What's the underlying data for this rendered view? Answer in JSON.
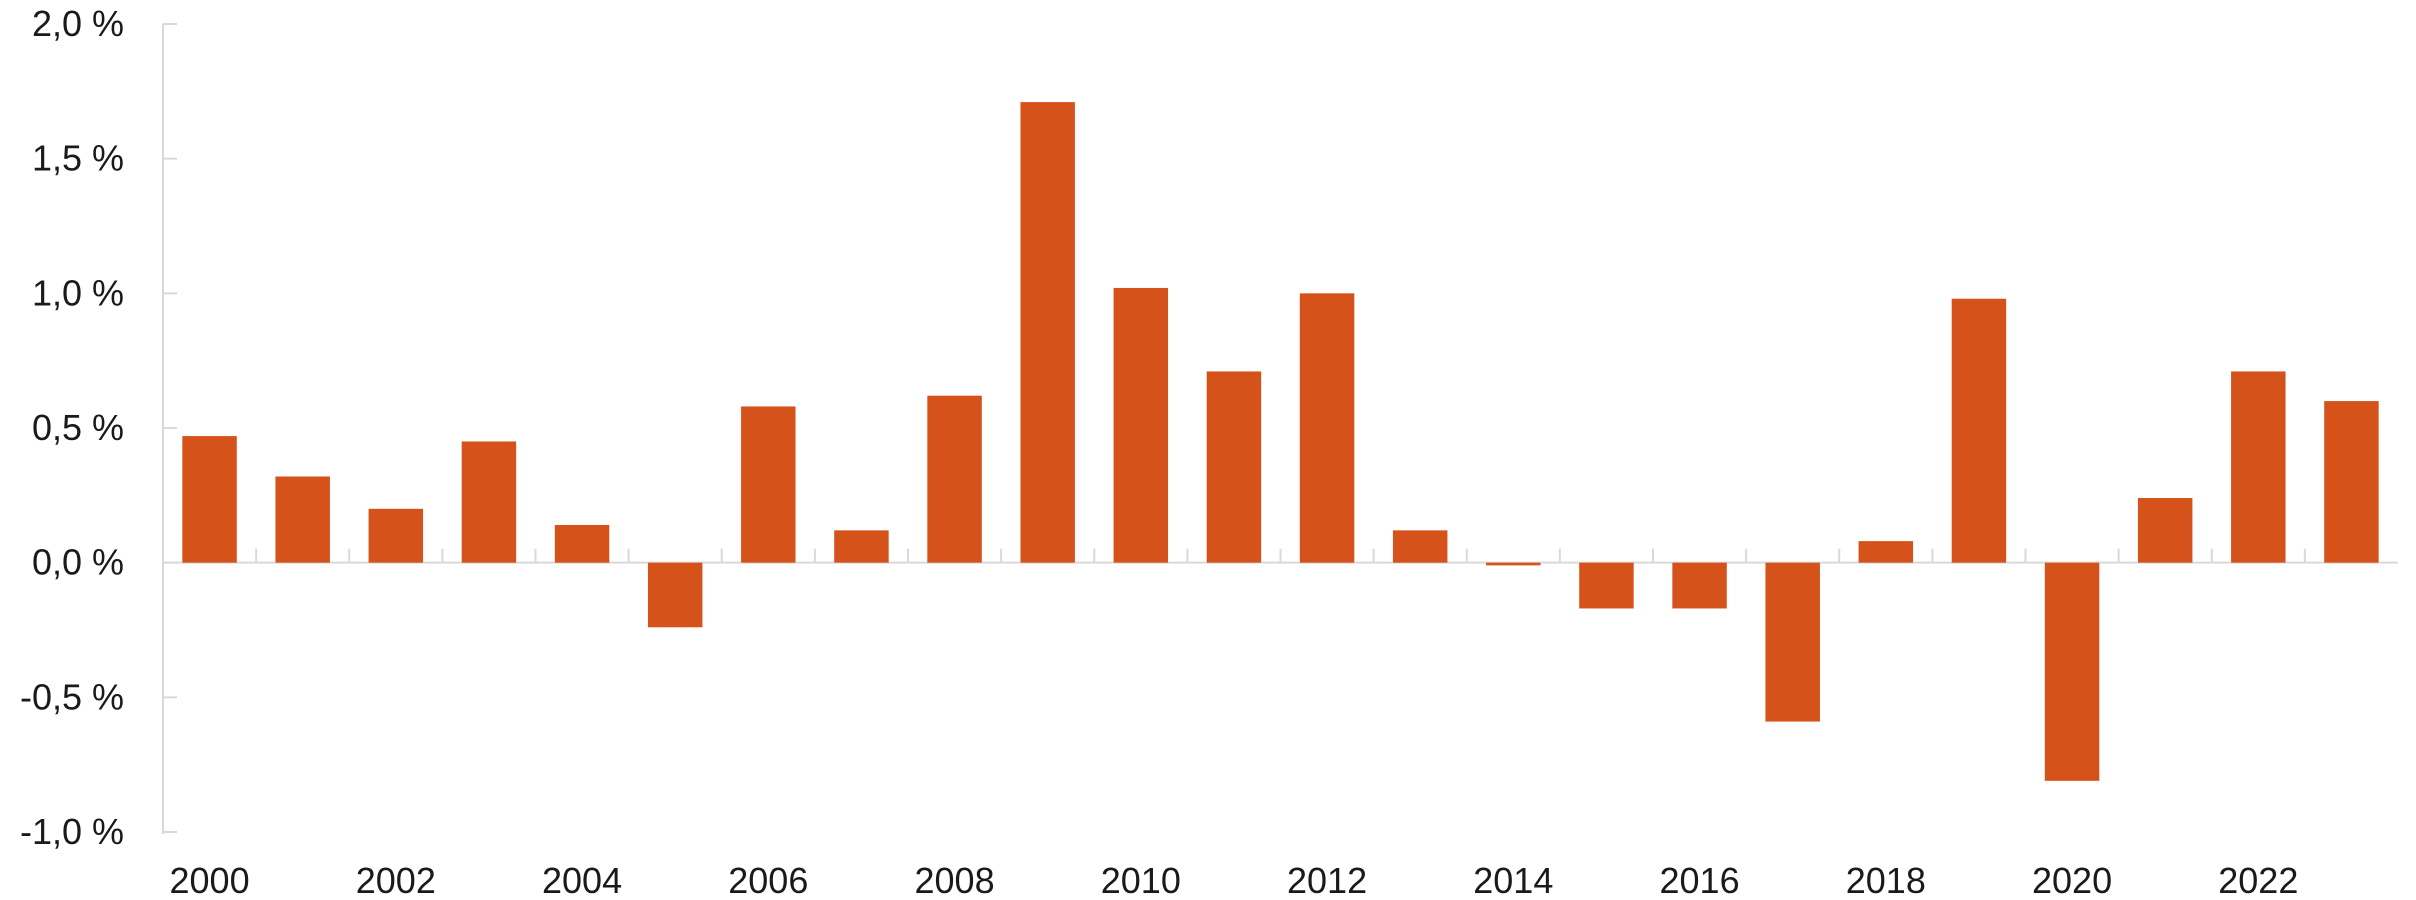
{
  "chart_data": {
    "type": "bar",
    "title": "",
    "xlabel": "",
    "ylabel": "",
    "categories": [
      "2000",
      "2001",
      "2002",
      "2003",
      "2004",
      "2005",
      "2006",
      "2007",
      "2008",
      "2009",
      "2010",
      "2011",
      "2012",
      "2013",
      "2014",
      "2015",
      "2016",
      "2017",
      "2018",
      "2019",
      "2020",
      "2021",
      "2022",
      "2023"
    ],
    "x_tick_labels": [
      "2000",
      "2002",
      "2004",
      "2006",
      "2008",
      "2010",
      "2012",
      "2014",
      "2016",
      "2018",
      "2020",
      "2022"
    ],
    "values": [
      0.47,
      0.32,
      0.2,
      0.45,
      0.14,
      -0.24,
      0.58,
      0.12,
      0.62,
      1.71,
      1.02,
      0.71,
      1.0,
      0.12,
      -0.01,
      -0.17,
      -0.17,
      -0.59,
      0.08,
      0.98,
      -0.81,
      0.24,
      0.71,
      0.6
    ],
    "ylim": [
      -1.0,
      2.0
    ],
    "y_ticks": [
      2.0,
      1.5,
      1.0,
      0.5,
      0.0,
      -0.5,
      -1.0
    ],
    "y_tick_labels": [
      "2,0 %",
      "1,5 %",
      "1,0 %",
      "0,5 %",
      "0,0 %",
      "-0,5 %",
      "-1,0 %"
    ],
    "bar_color": "#d6521b",
    "axis_color": "#d9d9d9",
    "grid": false,
    "legend": "none"
  }
}
